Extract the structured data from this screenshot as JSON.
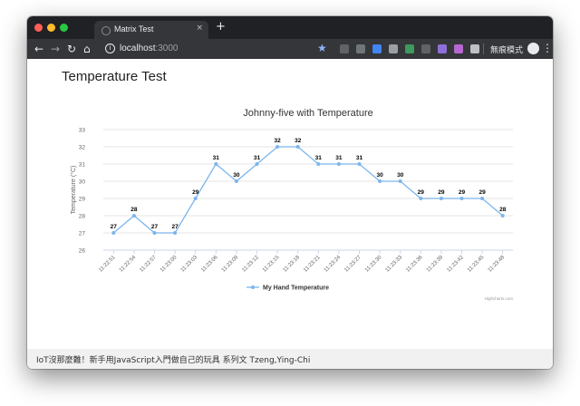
{
  "browser": {
    "tab_title": "Matrix Test",
    "tab_close": "×",
    "new_tab": "+",
    "url_host": "localhost",
    "url_port": ":3000",
    "incognito_label": "無痕模式",
    "colors": {
      "titlebar": "#202124",
      "toolbar": "#35363a"
    }
  },
  "page": {
    "title": "Temperature Test"
  },
  "footer": {
    "text": "IoT沒那麼難！新手用JavaScript入門做自己的玩具 系列文    Tzeng,Ying-Chi"
  },
  "chart_data": {
    "type": "line",
    "title": "Johnny-five with Temperature",
    "ylabel": "Temperature (°C)",
    "xlabel": "",
    "ylim": [
      26,
      33
    ],
    "y_ticks": [
      26,
      27,
      28,
      29,
      30,
      31,
      32,
      33
    ],
    "grid": true,
    "categories": [
      "11:22:51",
      "11:22:54",
      "11:22:57",
      "11:23:00",
      "11:23:03",
      "11:23:06",
      "11:23:09",
      "11:23:12",
      "11:23:15",
      "11:23:18",
      "11:23:21",
      "11:23:24",
      "11:23:27",
      "11:23:30",
      "11:23:33",
      "11:23:36",
      "11:23:39",
      "11:23:42",
      "11:23:45",
      "11:23:48"
    ],
    "series": [
      {
        "name": "My Hand Temperature",
        "color": "#7cb5ec",
        "values": [
          27,
          28,
          27,
          27,
          29,
          31,
          30,
          31,
          32,
          32,
          31,
          31,
          31,
          30,
          30,
          29,
          29,
          29,
          29,
          28
        ]
      }
    ],
    "legend": "bottom-center",
    "credits": "Highcharts.com"
  }
}
